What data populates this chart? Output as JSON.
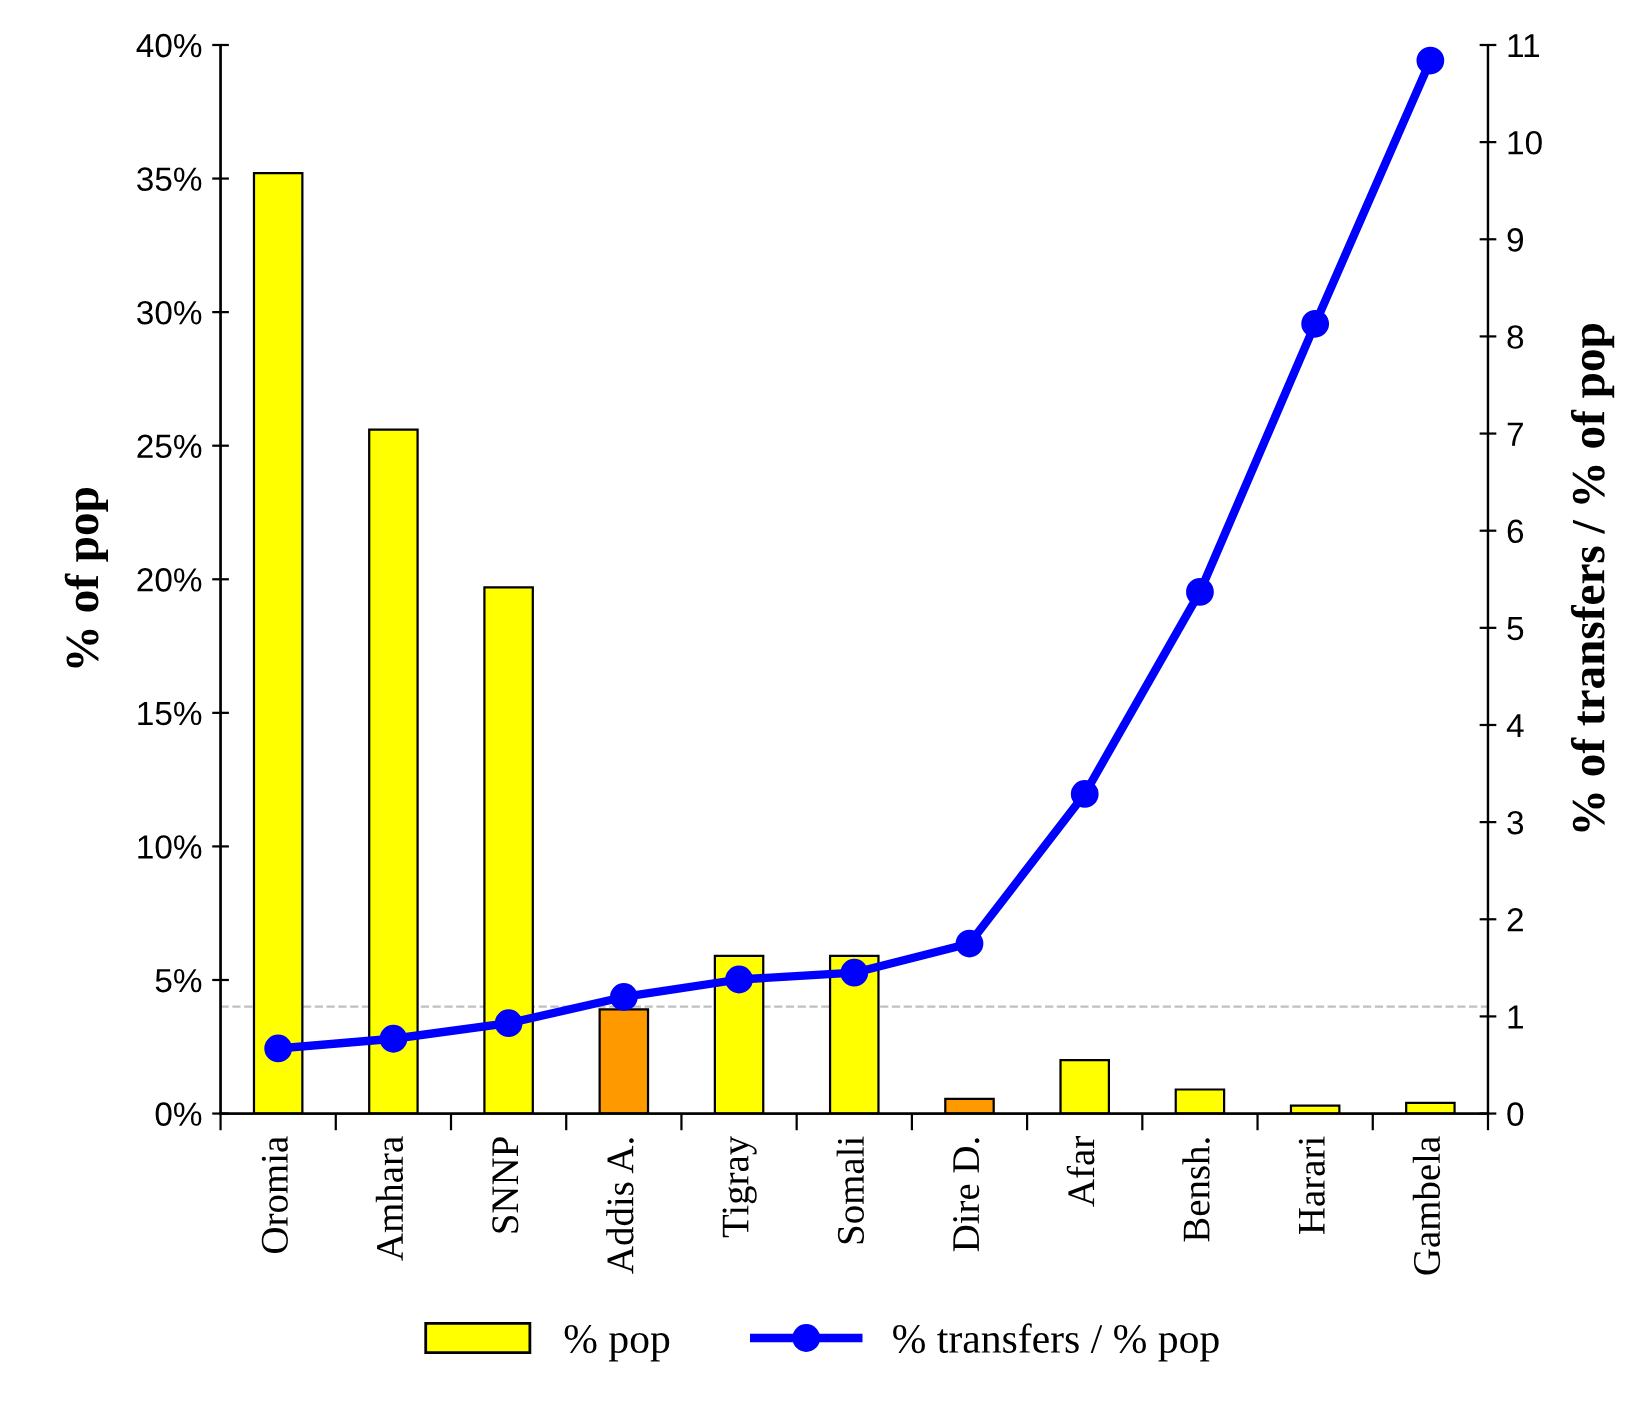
{
  "chart_data": {
    "type": "bar",
    "categories": [
      "Oromia",
      "Amhara",
      "SNNP",
      "Addis A.",
      "Tigray",
      "Somali",
      "Dire D.",
      "Afar",
      "Bensh.",
      "Harari",
      "Gambela"
    ],
    "ylabel": "% of pop",
    "y2label": "% of transfers / % of pop",
    "series": [
      {
        "name": "% pop",
        "color": "#ffff00",
        "colors": [
          "#ffff00",
          "#ffff00",
          "#ffff00",
          "#ff9900",
          "#ffff00",
          "#ffff00",
          "#ff9900",
          "#ffff00",
          "#ffff00",
          "#ffff00",
          "#ffff00"
        ],
        "values": [
          35.2,
          25.6,
          19.7,
          3.9,
          5.9,
          5.9,
          0.55,
          2.0,
          0.9,
          0.3,
          0.4
        ]
      },
      {
        "name": "% transfers / % pop",
        "type": "line",
        "axis": "y2",
        "color": "#0000ff",
        "marker": "circle",
        "values": [
          0.67,
          0.77,
          0.93,
          1.2,
          1.38,
          1.45,
          1.75,
          3.29,
          5.37,
          8.13,
          10.84
        ]
      }
    ],
    "ylim": [
      0,
      40
    ],
    "yticks": [
      {
        "value": 0,
        "label": "0%"
      },
      {
        "value": 5,
        "label": "5%"
      },
      {
        "value": 10,
        "label": "10%"
      },
      {
        "value": 15,
        "label": "15%"
      },
      {
        "value": 20,
        "label": "20%"
      },
      {
        "value": 25,
        "label": "25%"
      },
      {
        "value": 30,
        "label": "30%"
      },
      {
        "value": 35,
        "label": "35%"
      },
      {
        "value": 40,
        "label": "40%"
      }
    ],
    "y2lim": [
      0,
      11
    ],
    "y2ticks": [
      0,
      1,
      2,
      3,
      4,
      5,
      6,
      7,
      8,
      9,
      10,
      11
    ],
    "ref_lines": [
      {
        "axis": "y",
        "value": 4.0,
        "color": "#c0c0c0",
        "line_style": "dashed"
      }
    ],
    "legend": "bottom",
    "grid": false
  }
}
